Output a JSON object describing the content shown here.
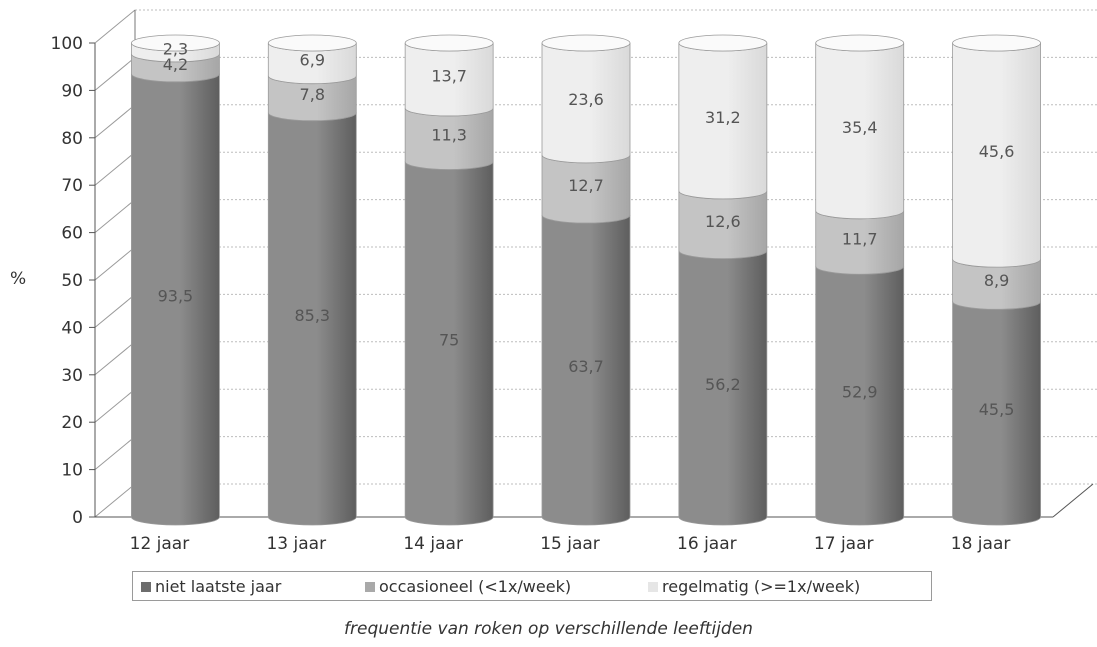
{
  "chart_data": {
    "type": "bar",
    "stacked": true,
    "ylabel": "%",
    "caption": "frequentie van roken op verschillende leeftijden",
    "ylim": [
      0,
      100
    ],
    "yticks": [
      0,
      10,
      20,
      30,
      40,
      50,
      60,
      70,
      80,
      90,
      100
    ],
    "categories": [
      "12 jaar",
      "13 jaar",
      "14 jaar",
      "15 jaar",
      "16 jaar",
      "17 jaar",
      "18 jaar"
    ],
    "series": [
      {
        "name": "niet laatste jaar",
        "color": "#8c8c8c",
        "values": [
          93.5,
          85.3,
          75,
          63.7,
          56.2,
          52.9,
          45.5
        ],
        "labels": [
          "93,5",
          "85,3",
          "75",
          "63,7",
          "56,2",
          "52,9",
          "45,5"
        ]
      },
      {
        "name": "occasioneel (<1x/week)",
        "color": "#c4c4c4",
        "values": [
          4.2,
          7.8,
          11.3,
          12.7,
          12.6,
          11.7,
          8.9
        ],
        "labels": [
          "4,2",
          "7,8",
          "11,3",
          "12,7",
          "12,6",
          "11,7",
          "8,9"
        ]
      },
      {
        "name": "regelmatig (>=1x/week)",
        "color": "#eeeeee",
        "values": [
          2.3,
          6.9,
          13.7,
          23.6,
          31.2,
          35.4,
          45.6
        ],
        "labels": [
          "2,3",
          "6,9",
          "13,7",
          "23,6",
          "31,2",
          "35,4",
          "45,6"
        ]
      }
    ],
    "grid": true,
    "legend_position": "bottom"
  }
}
